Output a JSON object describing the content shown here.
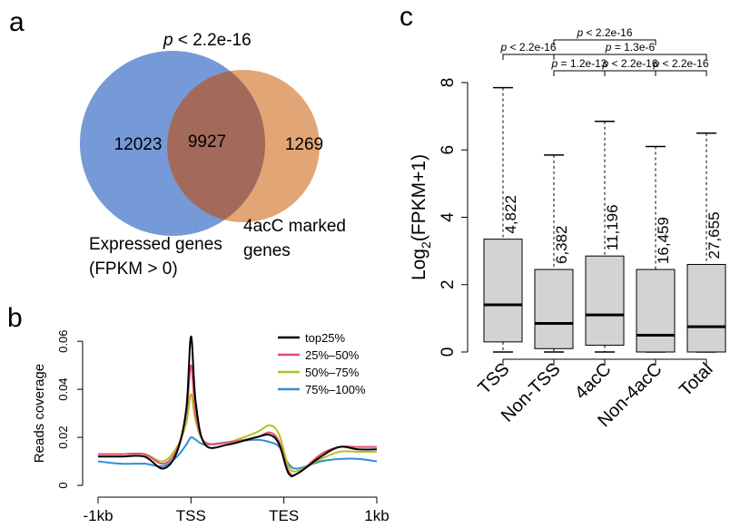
{
  "panel_labels": {
    "a": "a",
    "b": "b",
    "c": "c"
  },
  "chart_data": [
    {
      "type": "venn",
      "panel": "a",
      "title": "p < 2.2e-16",
      "sets": [
        {
          "name_lines": [
            "Expressed genes",
            "(FPKM > 0)"
          ],
          "only": 12023,
          "color": "#6f94d6"
        },
        {
          "name_lines": [
            "4acC marked",
            "genes"
          ],
          "only": 1269,
          "color": "#e0a06f"
        }
      ],
      "intersection": 9927,
      "intersection_color": "#a36a5b"
    },
    {
      "type": "line",
      "panel": "b",
      "ylabel": "Reads coverage",
      "x_ticks": [
        "-1kb",
        "TSS",
        "TES",
        "1kb"
      ],
      "x_tick_positions": [
        0,
        1,
        2,
        3
      ],
      "y_ticks": [
        "0",
        "0.02",
        "0.04",
        "0.06"
      ],
      "ylim": [
        0,
        0.068
      ],
      "legend_position": "top-right",
      "series": [
        {
          "name": "top25%",
          "color": "#000000",
          "points": [
            [
              0,
              0.012
            ],
            [
              0.25,
              0.012
            ],
            [
              0.5,
              0.012
            ],
            [
              0.7,
              0.007
            ],
            [
              0.85,
              0.014
            ],
            [
              0.95,
              0.032
            ],
            [
              1.0,
              0.062
            ],
            [
              1.05,
              0.035
            ],
            [
              1.15,
              0.017
            ],
            [
              1.4,
              0.017
            ],
            [
              1.7,
              0.02
            ],
            [
              1.85,
              0.021
            ],
            [
              1.95,
              0.017
            ],
            [
              2.05,
              0.005
            ],
            [
              2.15,
              0.005
            ],
            [
              2.4,
              0.012
            ],
            [
              2.6,
              0.016
            ],
            [
              2.8,
              0.015
            ],
            [
              3.0,
              0.015
            ]
          ]
        },
        {
          "name": "25%–50%",
          "color": "#e0506e",
          "points": [
            [
              0,
              0.013
            ],
            [
              0.25,
              0.013
            ],
            [
              0.5,
              0.013
            ],
            [
              0.7,
              0.009
            ],
            [
              0.85,
              0.015
            ],
            [
              0.95,
              0.03
            ],
            [
              1.0,
              0.05
            ],
            [
              1.05,
              0.03
            ],
            [
              1.15,
              0.018
            ],
            [
              1.4,
              0.018
            ],
            [
              1.7,
              0.02
            ],
            [
              1.85,
              0.022
            ],
            [
              1.95,
              0.018
            ],
            [
              2.05,
              0.006
            ],
            [
              2.15,
              0.005
            ],
            [
              2.4,
              0.013
            ],
            [
              2.6,
              0.016
            ],
            [
              2.8,
              0.016
            ],
            [
              3.0,
              0.016
            ]
          ]
        },
        {
          "name": "50%–75%",
          "color": "#b2c21f",
          "points": [
            [
              0,
              0.013
            ],
            [
              0.25,
              0.013
            ],
            [
              0.5,
              0.013
            ],
            [
              0.7,
              0.01
            ],
            [
              0.85,
              0.016
            ],
            [
              0.95,
              0.026
            ],
            [
              1.0,
              0.038
            ],
            [
              1.05,
              0.027
            ],
            [
              1.15,
              0.018
            ],
            [
              1.4,
              0.018
            ],
            [
              1.7,
              0.022
            ],
            [
              1.85,
              0.025
            ],
            [
              1.95,
              0.021
            ],
            [
              2.05,
              0.008
            ],
            [
              2.15,
              0.006
            ],
            [
              2.4,
              0.011
            ],
            [
              2.6,
              0.014
            ],
            [
              2.8,
              0.014
            ],
            [
              3.0,
              0.014
            ]
          ]
        },
        {
          "name": "75%–100%",
          "color": "#2f8fd8",
          "points": [
            [
              0,
              0.01
            ],
            [
              0.25,
              0.009
            ],
            [
              0.5,
              0.009
            ],
            [
              0.7,
              0.008
            ],
            [
              0.85,
              0.012
            ],
            [
              0.95,
              0.017
            ],
            [
              1.0,
              0.02
            ],
            [
              1.05,
              0.019
            ],
            [
              1.15,
              0.017
            ],
            [
              1.4,
              0.018
            ],
            [
              1.7,
              0.019
            ],
            [
              1.85,
              0.018
            ],
            [
              1.95,
              0.016
            ],
            [
              2.05,
              0.009
            ],
            [
              2.15,
              0.007
            ],
            [
              2.4,
              0.01
            ],
            [
              2.6,
              0.011
            ],
            [
              2.8,
              0.011
            ],
            [
              3.0,
              0.01
            ]
          ]
        }
      ]
    },
    {
      "type": "box",
      "panel": "c",
      "ylabel_main": "Log",
      "ylabel_sub": "2",
      "ylabel_rest": "(FPKM+1)",
      "ylim": [
        0,
        8
      ],
      "y_ticks": [
        "0",
        "2",
        "4",
        "6",
        "8"
      ],
      "categories": [
        "TSS",
        "Non-TSS",
        "4acC",
        "Non-4acC",
        "Total"
      ],
      "boxes": [
        {
          "min": 0.0,
          "q1": 0.3,
          "median": 1.4,
          "q3": 3.35,
          "max": 7.85,
          "n": "4,822"
        },
        {
          "min": 0.0,
          "q1": 0.1,
          "median": 0.85,
          "q3": 2.45,
          "max": 5.85,
          "n": "6,382"
        },
        {
          "min": 0.0,
          "q1": 0.2,
          "median": 1.1,
          "q3": 2.85,
          "max": 6.85,
          "n": "11,196"
        },
        {
          "min": 0.0,
          "q1": 0.0,
          "median": 0.5,
          "q3": 2.45,
          "max": 6.1,
          "n": "16,459"
        },
        {
          "min": 0.0,
          "q1": 0.0,
          "median": 0.75,
          "q3": 2.6,
          "max": 6.5,
          "n": "27,655"
        }
      ],
      "box_color": "#d3d3d3",
      "comparisons": [
        {
          "from": 1,
          "to": 3,
          "level": 3,
          "text": "p < 2.2e-16"
        },
        {
          "from": 0,
          "to": 1,
          "level": 2,
          "text": "p < 2.2e-16"
        },
        {
          "from": 1,
          "to": 4,
          "level": 2,
          "text": "p = 1.3e-6"
        },
        {
          "from": 1,
          "to": 2,
          "level": 1,
          "text": "p = 1.2e-13"
        },
        {
          "from": 2,
          "to": 3,
          "level": 1,
          "text": "p < 2.2e-16"
        },
        {
          "from": 3,
          "to": 4,
          "level": 1,
          "text": "p < 2.2e-16"
        }
      ]
    }
  ]
}
